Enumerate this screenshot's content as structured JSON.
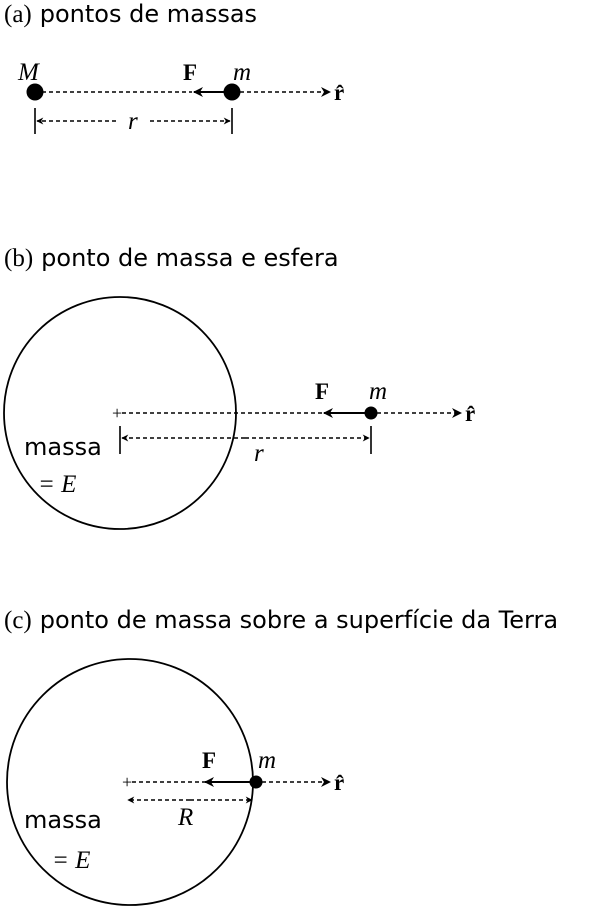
{
  "panels": [
    {
      "label": "(a)",
      "title": "pontos de massas",
      "mass_big": "M",
      "mass_small": "m",
      "force": "F",
      "unit_vector": "r̂",
      "distance": "r"
    },
    {
      "label": "(b)",
      "title": "ponto de massa e esfera",
      "sphere_text": "massa",
      "sphere_value": "= E",
      "mass_small": "m",
      "force": "F",
      "unit_vector": "r̂",
      "distance": "r"
    },
    {
      "label": "(c)",
      "title": "ponto de massa sobre a superfície da Terra",
      "sphere_text": "massa",
      "sphere_value": "= E",
      "mass_small": "m",
      "force": "F",
      "unit_vector": "r̂",
      "distance": "R"
    }
  ]
}
